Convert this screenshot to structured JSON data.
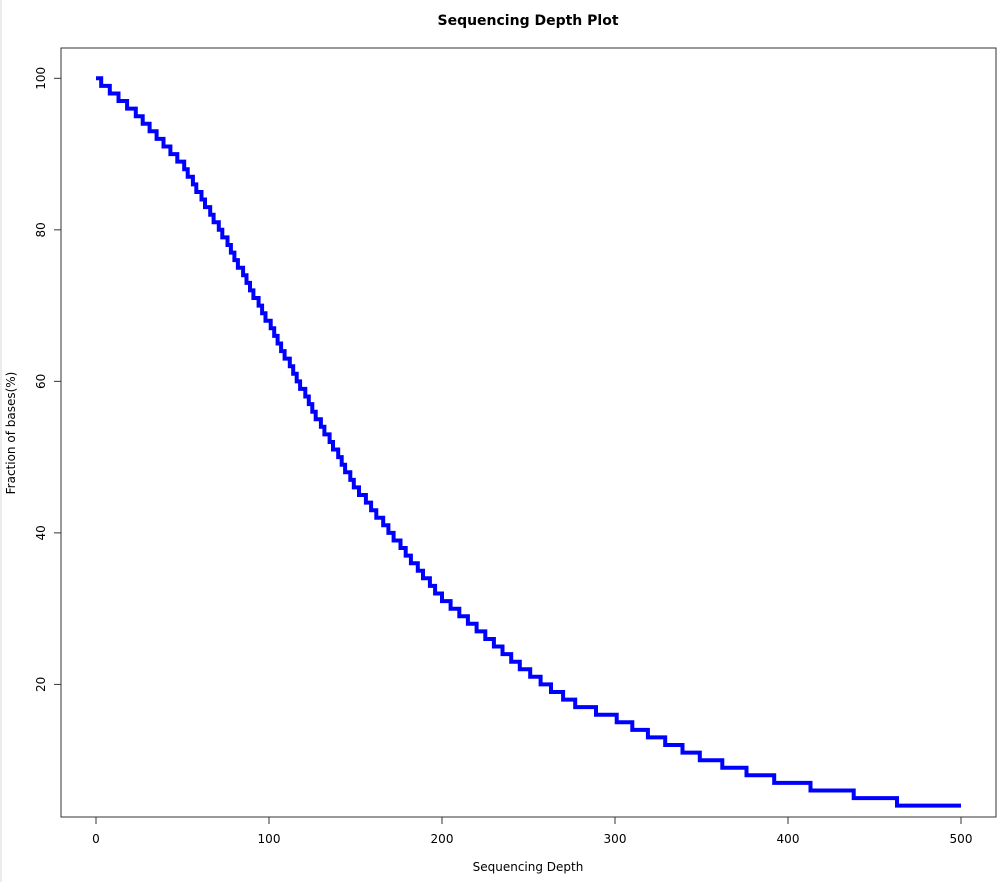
{
  "chart_data": {
    "type": "line",
    "title": "Sequencing Depth Plot",
    "xlabel": "Sequencing Depth",
    "ylabel": "Fraction of bases(%)",
    "xlim": [
      0,
      500
    ],
    "ylim": [
      2.5,
      104
    ],
    "x_ticks": [
      0,
      100,
      200,
      300,
      400,
      500
    ],
    "y_ticks": [
      20,
      40,
      60,
      80,
      100
    ],
    "grid": false,
    "series": [
      {
        "color": "#0000ff",
        "x": [
          0,
          25,
          50,
          75,
          100,
          125,
          150,
          175,
          200,
          225,
          250,
          275,
          300,
          325,
          350,
          375,
          400,
          425,
          450,
          475,
          500
        ],
        "values": [
          100,
          95,
          88.5,
          78.5,
          67.5,
          56.3,
          46,
          38.5,
          31.3,
          26.4,
          21.5,
          17.6,
          15.5,
          12.8,
          10.3,
          8.5,
          7,
          6,
          5,
          4,
          4
        ]
      }
    ]
  }
}
